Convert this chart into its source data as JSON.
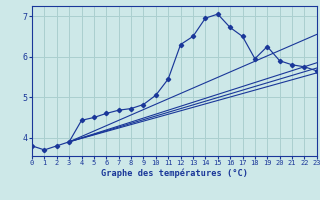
{
  "xlabel": "Graphe des températures (°C)",
  "bg_color": "#cde8e8",
  "line_color": "#1a3799",
  "grid_color": "#aacfcf",
  "xlim": [
    0,
    23
  ],
  "ylim": [
    3.55,
    7.25
  ],
  "yticks": [
    4,
    5,
    6,
    7
  ],
  "xticks": [
    0,
    1,
    2,
    3,
    4,
    5,
    6,
    7,
    8,
    9,
    10,
    11,
    12,
    13,
    14,
    15,
    16,
    17,
    18,
    19,
    20,
    21,
    22,
    23
  ],
  "curve_x": [
    0,
    1,
    2,
    3,
    4,
    5,
    6,
    7,
    8,
    9,
    10,
    11,
    12,
    13,
    14,
    15,
    16,
    17,
    18,
    19,
    20,
    21,
    22,
    23
  ],
  "curve_y": [
    3.8,
    3.7,
    3.8,
    3.9,
    4.43,
    4.5,
    4.6,
    4.68,
    4.72,
    4.82,
    5.05,
    5.45,
    6.3,
    6.5,
    6.95,
    7.05,
    6.72,
    6.5,
    5.95,
    6.25,
    5.9,
    5.8,
    5.75,
    5.65
  ],
  "straight_lines": [
    {
      "x": [
        3,
        23
      ],
      "y": [
        3.9,
        5.6
      ]
    },
    {
      "x": [
        3,
        23
      ],
      "y": [
        3.9,
        5.72
      ]
    },
    {
      "x": [
        3,
        23
      ],
      "y": [
        3.9,
        5.85
      ]
    },
    {
      "x": [
        3,
        23
      ],
      "y": [
        3.9,
        6.55
      ]
    }
  ]
}
